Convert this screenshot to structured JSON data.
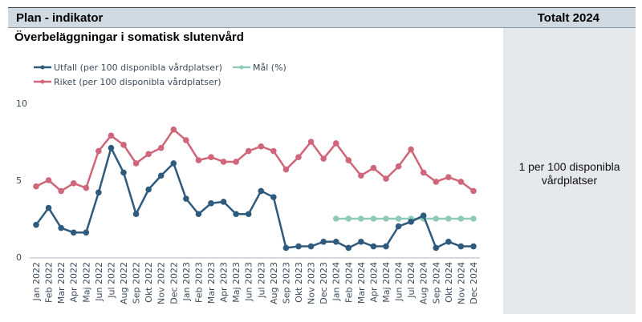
{
  "header": {
    "left_label": "Plan - indikator",
    "right_label": "Totalt 2024"
  },
  "chart_title": "Överbeläggningar i somatisk slutenvård",
  "panel": {
    "value_text": "1 per 100 disponibla vårdplatser"
  },
  "colors": {
    "utfall": "#2e5a7e",
    "mal": "#8fcbb8",
    "riket": "#cf6679",
    "header_bg": "#cfdae2",
    "panel_bg": "#e5e9ec"
  },
  "chart_data": {
    "type": "line",
    "title": "Överbeläggningar i somatisk slutenvård",
    "ylim": [
      0,
      10
    ],
    "yticks": [
      0,
      5,
      10
    ],
    "grid": false,
    "legend": "top-left",
    "categories": [
      "Jan 2022",
      "Feb 2022",
      "Mar 2022",
      "Apr 2022",
      "Maj 2022",
      "Jun 2022",
      "Jul 2022",
      "Aug 2022",
      "Sep 2022",
      "Okt 2022",
      "Nov 2022",
      "Dec 2022",
      "Jan 2023",
      "Feb 2023",
      "Mar 2023",
      "Apr 2023",
      "Maj 2023",
      "Jun 2023",
      "Jul 2023",
      "Aug 2023",
      "Sep 2023",
      "Okt 2023",
      "Nov 2023",
      "Dec 2023",
      "Jan 2024",
      "Feb 2024",
      "Mar 2024",
      "Apr 2024",
      "Maj 2024",
      "Jun 2024",
      "Jul 2024",
      "Aug 2024",
      "Sep 2024",
      "Okt 2024",
      "Nov 2024",
      "Dec 2024"
    ],
    "series": [
      {
        "name": "Utfall (per 100 disponibla vårdplatser)",
        "color": "#2e5a7e",
        "values": [
          2.1,
          3.2,
          1.9,
          1.6,
          1.6,
          4.2,
          7.1,
          5.5,
          2.8,
          4.4,
          5.3,
          6.1,
          3.8,
          2.8,
          3.5,
          3.6,
          2.8,
          2.8,
          4.3,
          3.9,
          0.6,
          0.7,
          0.7,
          1.0,
          1.0,
          0.6,
          1.0,
          0.7,
          0.7,
          2.0,
          2.3,
          2.7,
          0.6,
          1.0,
          0.7,
          0.7
        ]
      },
      {
        "name": "Mål (%)",
        "color": "#8fcbb8",
        "values": [
          null,
          null,
          null,
          null,
          null,
          null,
          null,
          null,
          null,
          null,
          null,
          null,
          null,
          null,
          null,
          null,
          null,
          null,
          null,
          null,
          null,
          null,
          null,
          null,
          2.5,
          2.5,
          2.5,
          2.5,
          2.5,
          2.5,
          2.5,
          2.5,
          2.5,
          2.5,
          2.5,
          2.5
        ]
      },
      {
        "name": "Riket (per 100 disponibla vårdplatser)",
        "color": "#cf6679",
        "values": [
          4.6,
          5.0,
          4.3,
          4.8,
          4.5,
          6.9,
          7.9,
          7.3,
          6.1,
          6.7,
          7.1,
          8.3,
          7.6,
          6.3,
          6.5,
          6.2,
          6.2,
          6.9,
          7.2,
          6.9,
          5.7,
          6.5,
          7.5,
          6.4,
          7.4,
          6.3,
          5.3,
          5.8,
          5.1,
          5.9,
          7.0,
          5.5,
          4.9,
          5.2,
          4.9,
          4.3
        ]
      }
    ]
  }
}
